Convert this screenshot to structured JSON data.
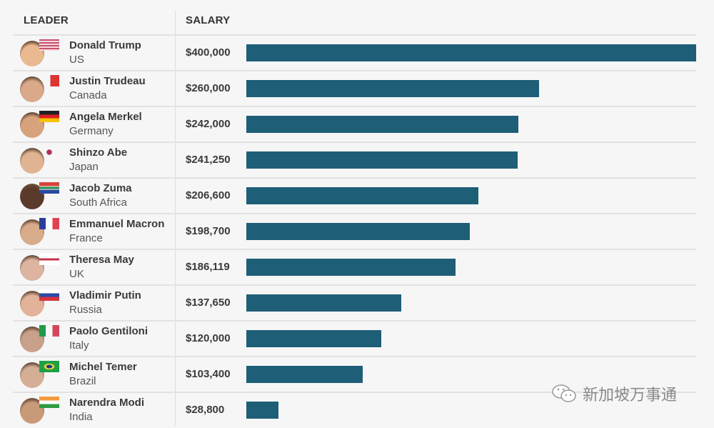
{
  "chart_data": {
    "type": "bar",
    "orientation": "horizontal",
    "columns": {
      "leader": "LEADER",
      "salary": "SALARY"
    },
    "xlim": [
      0,
      400000
    ],
    "bar_color": "#1e5e77",
    "rows": [
      {
        "name": "Donald Trump",
        "country": "US",
        "salary_label": "$400,000",
        "value": 400000,
        "flag": "us-flag-icon"
      },
      {
        "name": "Justin Trudeau",
        "country": "Canada",
        "salary_label": "$260,000",
        "value": 260000,
        "flag": "canada-flag-icon"
      },
      {
        "name": "Angela Merkel",
        "country": "Germany",
        "salary_label": "$242,000",
        "value": 242000,
        "flag": "germany-flag-icon"
      },
      {
        "name": "Shinzo Abe",
        "country": "Japan",
        "salary_label": "$241,250",
        "value": 241250,
        "flag": "japan-flag-icon"
      },
      {
        "name": "Jacob Zuma",
        "country": "South Africa",
        "salary_label": "$206,600",
        "value": 206600,
        "flag": "south-africa-flag-icon"
      },
      {
        "name": "Emmanuel Macron",
        "country": "France",
        "salary_label": "$198,700",
        "value": 198700,
        "flag": "france-flag-icon"
      },
      {
        "name": "Theresa May",
        "country": "UK",
        "salary_label": "$186,119",
        "value": 186119,
        "flag": "uk-flag-icon"
      },
      {
        "name": "Vladimir Putin",
        "country": "Russia",
        "salary_label": "$137,650",
        "value": 137650,
        "flag": "russia-flag-icon"
      },
      {
        "name": "Paolo Gentiloni",
        "country": "Italy",
        "salary_label": "$120,000",
        "value": 120000,
        "flag": "italy-flag-icon"
      },
      {
        "name": "Michel Temer",
        "country": "Brazil",
        "salary_label": "$103,400",
        "value": 103400,
        "flag": "brazil-flag-icon"
      },
      {
        "name": "Narendra Modi",
        "country": "India",
        "salary_label": "$28,800",
        "value": 28800,
        "flag": "india-flag-icon"
      }
    ]
  },
  "watermark": {
    "text": "新加坡万事通",
    "icon": "wechat-icon"
  }
}
